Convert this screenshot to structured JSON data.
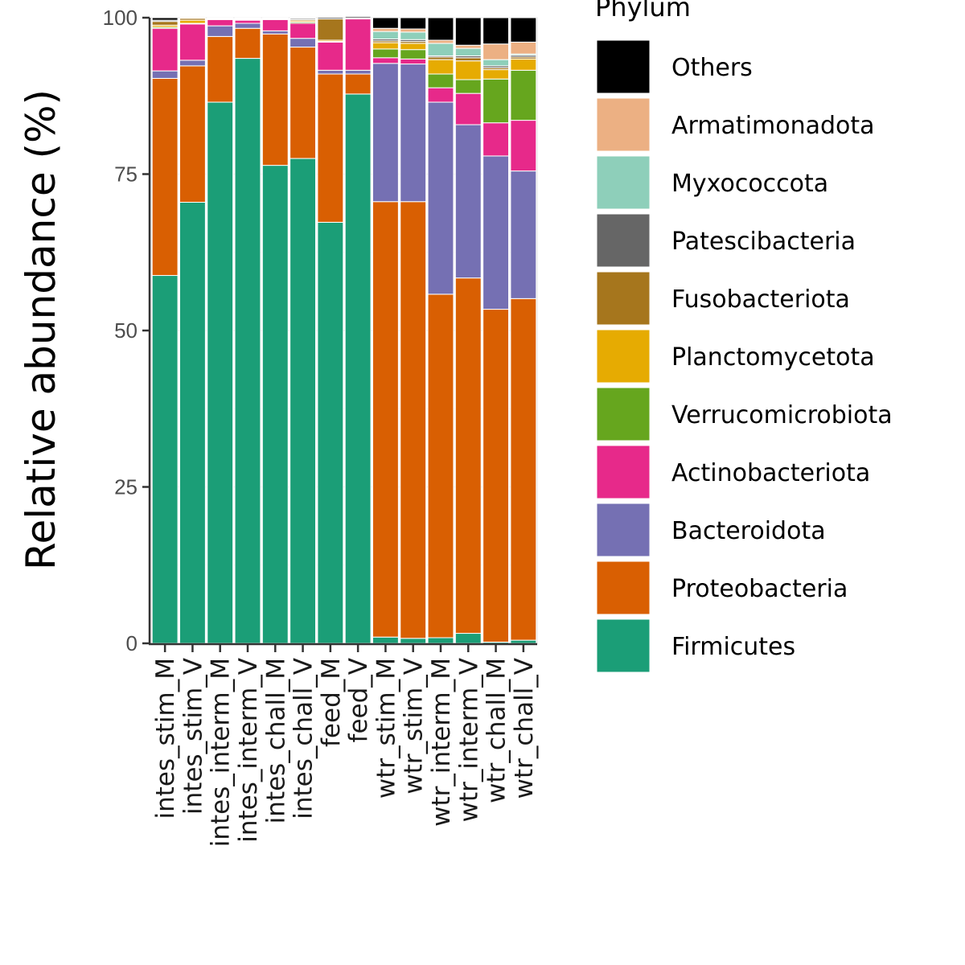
{
  "chart_data": {
    "type": "bar",
    "stacked": true,
    "ylabel": "Relative abundance (%)",
    "xlabel": "",
    "ylim": [
      0,
      100
    ],
    "yticks": [
      "0",
      "25",
      "50",
      "75",
      "100"
    ],
    "legend_title": "Phylum",
    "legend_placement": "right",
    "categories": [
      "intes_stim_M",
      "intes_stim_V",
      "intes_interm_M",
      "intes_interm_V",
      "intes_chall_M",
      "intes_chall_V",
      "feed_M",
      "feed_V",
      "wtr_stim_M",
      "wtr_stim_V",
      "wtr_interm_M",
      "wtr_interm_V",
      "wtr_chall_M",
      "wtr_chall_V"
    ],
    "series": [
      {
        "name": "Firmicutes",
        "color": "#1B9E77",
        "values": [
          58.8,
          70.5,
          86.5,
          93.5,
          76.4,
          77.5,
          67.3,
          87.8,
          1.0,
          0.8,
          0.9,
          1.6,
          0.2,
          0.5
        ]
      },
      {
        "name": "Proteobacteria",
        "color": "#D95F02",
        "values": [
          31.5,
          21.8,
          10.5,
          4.8,
          21.0,
          17.8,
          23.7,
          3.2,
          69.6,
          69.8,
          54.9,
          56.8,
          53.2,
          54.6
        ]
      },
      {
        "name": "Bacteroidota",
        "color": "#7570B3",
        "values": [
          1.2,
          0.9,
          1.7,
          0.8,
          0.5,
          1.4,
          0.6,
          0.6,
          22.1,
          22.0,
          30.7,
          24.5,
          24.5,
          20.4
        ]
      },
      {
        "name": "Actinobacteriota",
        "color": "#E7298A",
        "values": [
          6.8,
          5.8,
          1.0,
          0.5,
          1.8,
          2.4,
          4.5,
          8.2,
          0.9,
          0.8,
          2.3,
          5.0,
          5.3,
          8.1
        ]
      },
      {
        "name": "Verrucomicrobiota",
        "color": "#66A61E",
        "values": [
          0.2,
          0.1,
          0.1,
          0.1,
          0.1,
          0.2,
          0.1,
          0.1,
          1.4,
          1.5,
          2.2,
          2.2,
          7.0,
          8.0
        ]
      },
      {
        "name": "Planctomycetota",
        "color": "#E6AB02",
        "values": [
          0.3,
          0.5,
          0.1,
          0.1,
          0.1,
          0.2,
          0.2,
          0.1,
          1.0,
          1.0,
          2.3,
          3.0,
          1.5,
          1.8
        ]
      },
      {
        "name": "Fusobacteriota",
        "color": "#A6761D",
        "values": [
          0.6,
          0.3,
          0.0,
          0.0,
          0.0,
          0.2,
          3.4,
          0.0,
          0.3,
          0.3,
          0.4,
          0.5,
          0.3,
          0.3
        ]
      },
      {
        "name": "Patescibacteria",
        "color": "#666666",
        "values": [
          0.2,
          0.1,
          0.0,
          0.1,
          0.0,
          0.2,
          0.0,
          0.0,
          0.3,
          0.3,
          0.2,
          0.3,
          0.3,
          0.3
        ]
      },
      {
        "name": "Myxococcota",
        "color": "#8ECFBA",
        "values": [
          0.0,
          0.0,
          0.0,
          0.0,
          0.0,
          0.0,
          0.0,
          0.0,
          1.2,
          1.2,
          2.0,
          1.2,
          1.0,
          0.2
        ]
      },
      {
        "name": "Armatimonadota",
        "color": "#ECB083",
        "values": [
          0.0,
          0.0,
          0.0,
          0.0,
          0.0,
          0.0,
          0.0,
          0.0,
          0.5,
          0.5,
          0.5,
          0.5,
          2.5,
          1.9
        ]
      },
      {
        "name": "Others",
        "color": "#000000",
        "values": [
          0.4,
          0.0,
          0.1,
          0.1,
          0.1,
          0.1,
          0.2,
          0.2,
          1.7,
          1.8,
          3.6,
          4.4,
          4.2,
          3.9
        ]
      }
    ]
  }
}
